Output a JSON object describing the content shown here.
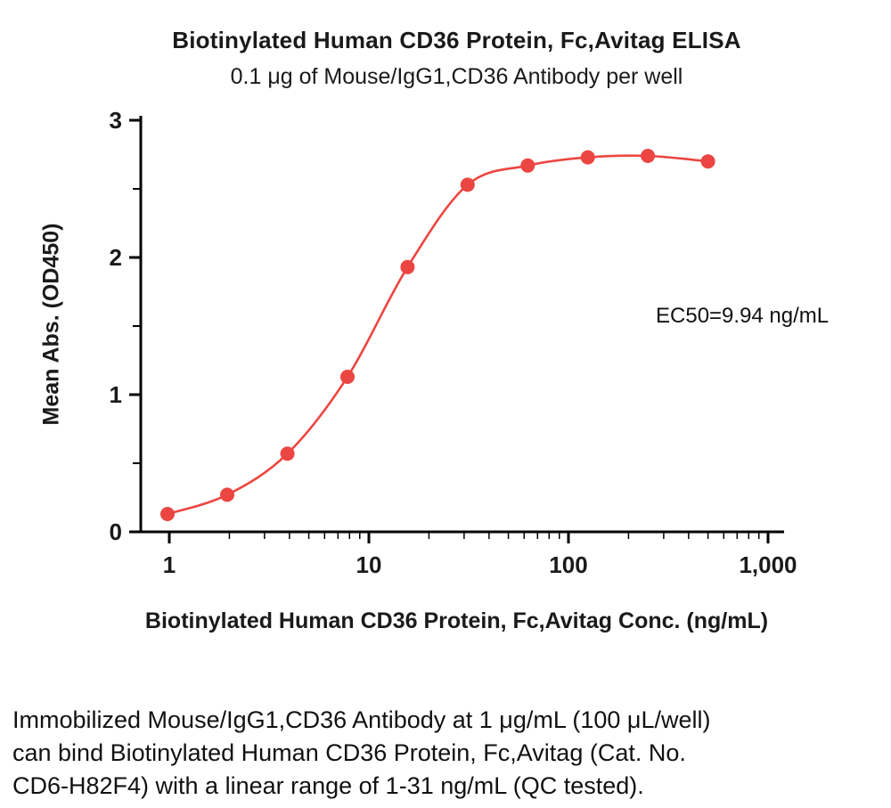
{
  "title": "Biotinylated Human CD36 Protein, Fc,Avitag ELISA",
  "subtitle": "0.1 μg of Mouse/IgG1,CD36 Antibody per well",
  "annotation": {
    "ec50_label": "EC50=9.94 ng/mL"
  },
  "caption": {
    "lines": [
      "Immobilized Mouse/IgG1,CD36 Antibody at 1 μg/mL (100 μL/well)",
      "can bind Biotinylated Human CD36 Protein, Fc,Avitag (Cat. No.",
      "CD6-H82F4) with a linear range of 1-31 ng/mL (QC tested)."
    ]
  },
  "chart_data": {
    "type": "scatter",
    "title": "Biotinylated Human CD36 Protein, Fc,Avitag ELISA",
    "subtitle": "0.1 μg of Mouse/IgG1,CD36 Antibody per well",
    "xlabel": "Biotinylated Human CD36 Protein, Fc,Avitag Conc. (ng/mL)",
    "ylabel": "Mean Abs. (OD450)",
    "x_scale": "log10",
    "xlim": [
      1,
      1000
    ],
    "ylim": [
      0,
      3
    ],
    "x": [
      0.98,
      1.95,
      3.91,
      7.81,
      15.63,
      31.25,
      62.5,
      125,
      250,
      500
    ],
    "y": [
      0.13,
      0.27,
      0.57,
      1.13,
      1.93,
      2.53,
      2.67,
      2.73,
      2.74,
      2.7
    ],
    "curve": "4PL sigmoidal fit through points",
    "ec50_ng_ml": 9.94,
    "x_ticks": [
      {
        "value": 1,
        "label": "1"
      },
      {
        "value": 10,
        "label": "10"
      },
      {
        "value": 100,
        "label": "100"
      },
      {
        "value": 1000,
        "label": "1,000"
      }
    ],
    "y_ticks": [
      {
        "value": 0,
        "label": "0"
      },
      {
        "value": 1,
        "label": "1"
      },
      {
        "value": 2,
        "label": "2"
      },
      {
        "value": 3,
        "label": "3"
      }
    ],
    "grid": false,
    "legend": "none",
    "colors": {
      "series": "#EC4642",
      "axis": "#000000",
      "text": "#1a1a1a"
    }
  }
}
